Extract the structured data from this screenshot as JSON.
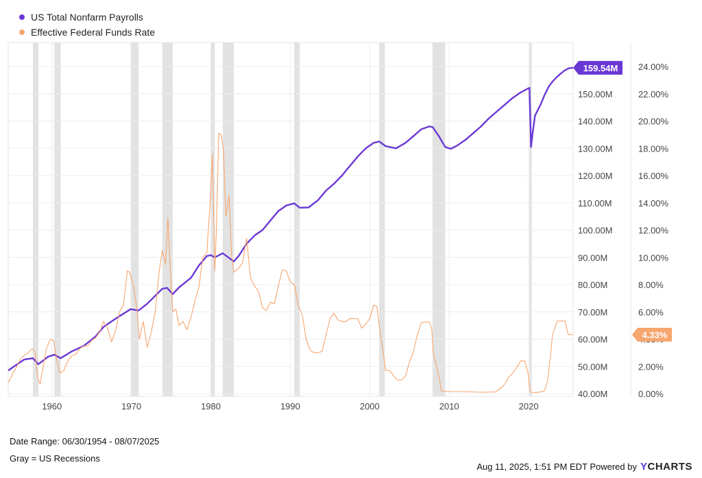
{
  "legend": [
    {
      "label": "US Total Nonfarm Payrolls",
      "color": "#6a38d6"
    },
    {
      "label": "Effective Federal Funds Rate",
      "color": "#f6a66e"
    }
  ],
  "footer": {
    "date_range": "Date Range: 06/30/1954 - 08/07/2025",
    "gray_note": "Gray = US Recessions",
    "timestamp": "Aug 11, 2025, 1:51 PM EDT Powered by",
    "brand_y": "Y",
    "brand_rest": "CHARTS"
  },
  "chart_data": {
    "type": "line",
    "x_ticks": [
      "1960",
      "1970",
      "1980",
      "1990",
      "2000",
      "2010",
      "2020"
    ],
    "x_range": [
      1954.5,
      2025.6
    ],
    "left_axis": {
      "range": [
        40,
        160
      ],
      "ticks": [
        "40.00M",
        "50.00M",
        "60.00M",
        "70.00M",
        "80.00M",
        "90.00M",
        "100.00M",
        "110.00M",
        "120.00M",
        "130.00M",
        "140.00M",
        "150.00M",
        "160.00M"
      ]
    },
    "right_axis": {
      "range": [
        0,
        24
      ],
      "ticks": [
        "0.00%",
        "2.00%",
        "4.00%",
        "6.00%",
        "8.00%",
        "10.00%",
        "12.00%",
        "14.00%",
        "16.00%",
        "18.00%",
        "20.00%",
        "22.00%",
        "24.00%"
      ]
    },
    "recessions": [
      [
        1957.6,
        1958.3
      ],
      [
        1960.3,
        1961.1
      ],
      [
        1969.9,
        1970.9
      ],
      [
        1973.9,
        1975.2
      ],
      [
        1980.0,
        1980.5
      ],
      [
        1981.5,
        1982.9
      ],
      [
        1990.5,
        1991.2
      ],
      [
        2001.2,
        2001.9
      ],
      [
        2007.9,
        2009.5
      ],
      [
        2020.1,
        2020.4
      ]
    ],
    "series": [
      {
        "name": "US Total Nonfarm Payrolls",
        "axis": "left",
        "color": "#6a38d6",
        "last_label": "159.54M",
        "points": [
          [
            1954.5,
            48.5
          ],
          [
            1955.5,
            50.5
          ],
          [
            1956.5,
            52.5
          ],
          [
            1957.6,
            53.0
          ],
          [
            1958.3,
            50.8
          ],
          [
            1959.5,
            53.5
          ],
          [
            1960.3,
            54.3
          ],
          [
            1961.1,
            53.0
          ],
          [
            1962.5,
            55.5
          ],
          [
            1964.0,
            57.5
          ],
          [
            1965.5,
            61.0
          ],
          [
            1966.5,
            64.5
          ],
          [
            1968.0,
            67.5
          ],
          [
            1969.9,
            71.0
          ],
          [
            1970.9,
            70.5
          ],
          [
            1972.0,
            73.0
          ],
          [
            1973.9,
            78.5
          ],
          [
            1974.5,
            78.8
          ],
          [
            1975.2,
            76.5
          ],
          [
            1976.0,
            79.0
          ],
          [
            1977.5,
            82.5
          ],
          [
            1978.5,
            87.0
          ],
          [
            1979.5,
            90.5
          ],
          [
            1980.0,
            90.8
          ],
          [
            1980.5,
            90.0
          ],
          [
            1981.5,
            91.5
          ],
          [
            1982.9,
            88.5
          ],
          [
            1983.5,
            90.5
          ],
          [
            1984.5,
            95.0
          ],
          [
            1985.5,
            98.0
          ],
          [
            1986.5,
            100.0
          ],
          [
            1987.5,
            103.5
          ],
          [
            1988.5,
            107.0
          ],
          [
            1989.5,
            109.0
          ],
          [
            1990.5,
            109.8
          ],
          [
            1991.2,
            108.2
          ],
          [
            1992.3,
            108.3
          ],
          [
            1993.5,
            111.0
          ],
          [
            1994.5,
            114.5
          ],
          [
            1995.5,
            117.0
          ],
          [
            1996.5,
            120.0
          ],
          [
            1997.5,
            123.5
          ],
          [
            1998.5,
            127.0
          ],
          [
            1999.5,
            130.0
          ],
          [
            2000.5,
            132.0
          ],
          [
            2001.2,
            132.5
          ],
          [
            2002.0,
            130.8
          ],
          [
            2003.3,
            130.0
          ],
          [
            2004.5,
            132.0
          ],
          [
            2005.5,
            134.5
          ],
          [
            2006.5,
            137.0
          ],
          [
            2007.5,
            138.0
          ],
          [
            2007.9,
            137.8
          ],
          [
            2008.7,
            134.5
          ],
          [
            2009.5,
            130.5
          ],
          [
            2010.2,
            129.8
          ],
          [
            2011.0,
            131.0
          ],
          [
            2012.0,
            133.0
          ],
          [
            2013.0,
            135.5
          ],
          [
            2014.0,
            138.0
          ],
          [
            2015.0,
            141.0
          ],
          [
            2016.0,
            143.5
          ],
          [
            2017.0,
            146.0
          ],
          [
            2018.0,
            148.5
          ],
          [
            2019.0,
            150.5
          ],
          [
            2020.1,
            152.2
          ],
          [
            2020.3,
            130.5
          ],
          [
            2020.5,
            135.5
          ],
          [
            2020.8,
            142.0
          ],
          [
            2021.5,
            146.0
          ],
          [
            2022.0,
            149.5
          ],
          [
            2022.5,
            152.5
          ],
          [
            2023.0,
            154.5
          ],
          [
            2023.5,
            156.0
          ],
          [
            2024.0,
            157.3
          ],
          [
            2024.5,
            158.5
          ],
          [
            2025.0,
            159.3
          ],
          [
            2025.6,
            159.54
          ]
        ]
      },
      {
        "name": "Effective Federal Funds Rate",
        "axis": "right",
        "color": "#f6a66e",
        "last_label": "4.33%",
        "points": [
          [
            1954.5,
            0.8
          ],
          [
            1955.0,
            1.4
          ],
          [
            1955.5,
            1.9
          ],
          [
            1956.0,
            2.5
          ],
          [
            1956.5,
            2.8
          ],
          [
            1957.0,
            3.0
          ],
          [
            1957.5,
            3.3
          ],
          [
            1957.9,
            3.0
          ],
          [
            1958.2,
            1.2
          ],
          [
            1958.5,
            0.7
          ],
          [
            1958.9,
            2.0
          ],
          [
            1959.3,
            3.3
          ],
          [
            1959.8,
            4.0
          ],
          [
            1960.2,
            3.9
          ],
          [
            1960.6,
            2.5
          ],
          [
            1961.0,
            1.5
          ],
          [
            1961.5,
            1.7
          ],
          [
            1962.0,
            2.4
          ],
          [
            1962.5,
            2.8
          ],
          [
            1963.0,
            2.9
          ],
          [
            1963.5,
            3.3
          ],
          [
            1964.0,
            3.5
          ],
          [
            1964.5,
            3.5
          ],
          [
            1965.0,
            3.9
          ],
          [
            1965.5,
            4.1
          ],
          [
            1966.0,
            4.5
          ],
          [
            1966.5,
            5.3
          ],
          [
            1967.0,
            4.8
          ],
          [
            1967.5,
            3.8
          ],
          [
            1968.0,
            4.6
          ],
          [
            1968.5,
            6.0
          ],
          [
            1969.0,
            6.5
          ],
          [
            1969.5,
            9.0
          ],
          [
            1969.8,
            8.9
          ],
          [
            1970.3,
            7.8
          ],
          [
            1970.7,
            6.2
          ],
          [
            1971.0,
            4.0
          ],
          [
            1971.5,
            5.3
          ],
          [
            1972.0,
            3.4
          ],
          [
            1972.5,
            4.5
          ],
          [
            1973.0,
            6.0
          ],
          [
            1973.5,
            9.0
          ],
          [
            1973.9,
            10.5
          ],
          [
            1974.3,
            9.5
          ],
          [
            1974.6,
            12.9
          ],
          [
            1974.9,
            9.2
          ],
          [
            1975.2,
            6.0
          ],
          [
            1975.6,
            6.2
          ],
          [
            1976.0,
            5.0
          ],
          [
            1976.5,
            5.3
          ],
          [
            1977.0,
            4.7
          ],
          [
            1977.5,
            5.6
          ],
          [
            1978.0,
            6.8
          ],
          [
            1978.5,
            7.8
          ],
          [
            1979.0,
            10.0
          ],
          [
            1979.5,
            10.3
          ],
          [
            1979.9,
            14.0
          ],
          [
            1980.2,
            17.6
          ],
          [
            1980.5,
            9.0
          ],
          [
            1980.7,
            12.0
          ],
          [
            1981.0,
            19.1
          ],
          [
            1981.3,
            19.0
          ],
          [
            1981.6,
            17.8
          ],
          [
            1981.9,
            13.0
          ],
          [
            1982.3,
            14.5
          ],
          [
            1982.6,
            10.2
          ],
          [
            1982.9,
            8.9
          ],
          [
            1983.5,
            9.2
          ],
          [
            1984.0,
            9.6
          ],
          [
            1984.5,
            11.4
          ],
          [
            1985.0,
            8.5
          ],
          [
            1985.5,
            7.9
          ],
          [
            1986.0,
            7.5
          ],
          [
            1986.5,
            6.3
          ],
          [
            1987.0,
            6.1
          ],
          [
            1987.5,
            6.7
          ],
          [
            1988.0,
            6.6
          ],
          [
            1988.5,
            7.9
          ],
          [
            1989.0,
            9.1
          ],
          [
            1989.5,
            9.0
          ],
          [
            1990.0,
            8.2
          ],
          [
            1990.5,
            8.0
          ],
          [
            1991.0,
            6.5
          ],
          [
            1991.5,
            5.8
          ],
          [
            1992.0,
            4.0
          ],
          [
            1992.5,
            3.2
          ],
          [
            1993.0,
            3.0
          ],
          [
            1993.5,
            3.0
          ],
          [
            1994.0,
            3.1
          ],
          [
            1994.5,
            4.3
          ],
          [
            1995.0,
            5.5
          ],
          [
            1995.5,
            5.9
          ],
          [
            1996.0,
            5.4
          ],
          [
            1996.5,
            5.3
          ],
          [
            1997.0,
            5.3
          ],
          [
            1997.5,
            5.5
          ],
          [
            1998.0,
            5.5
          ],
          [
            1998.5,
            5.5
          ],
          [
            1999.0,
            4.8
          ],
          [
            1999.5,
            5.1
          ],
          [
            2000.0,
            5.5
          ],
          [
            2000.5,
            6.5
          ],
          [
            2000.9,
            6.4
          ],
          [
            2001.3,
            4.5
          ],
          [
            2001.7,
            3.0
          ],
          [
            2002.0,
            1.7
          ],
          [
            2002.5,
            1.7
          ],
          [
            2003.0,
            1.3
          ],
          [
            2003.5,
            1.0
          ],
          [
            2004.0,
            1.0
          ],
          [
            2004.5,
            1.3
          ],
          [
            2005.0,
            2.3
          ],
          [
            2005.5,
            3.1
          ],
          [
            2006.0,
            4.3
          ],
          [
            2006.5,
            5.2
          ],
          [
            2007.0,
            5.25
          ],
          [
            2007.5,
            5.25
          ],
          [
            2007.8,
            4.8
          ],
          [
            2008.0,
            3.0
          ],
          [
            2008.4,
            2.0
          ],
          [
            2008.8,
            1.0
          ],
          [
            2009.0,
            0.2
          ],
          [
            2010.0,
            0.15
          ],
          [
            2012.0,
            0.15
          ],
          [
            2014.0,
            0.1
          ],
          [
            2015.8,
            0.12
          ],
          [
            2016.5,
            0.4
          ],
          [
            2017.0,
            0.7
          ],
          [
            2017.5,
            1.2
          ],
          [
            2018.0,
            1.5
          ],
          [
            2018.5,
            1.9
          ],
          [
            2019.0,
            2.4
          ],
          [
            2019.5,
            2.4
          ],
          [
            2019.9,
            1.6
          ],
          [
            2020.2,
            0.1
          ],
          [
            2021.0,
            0.08
          ],
          [
            2022.0,
            0.2
          ],
          [
            2022.4,
            1.0
          ],
          [
            2022.7,
            2.5
          ],
          [
            2023.0,
            4.3
          ],
          [
            2023.4,
            5.0
          ],
          [
            2023.6,
            5.33
          ],
          [
            2024.6,
            5.33
          ],
          [
            2024.8,
            4.8
          ],
          [
            2025.0,
            4.33
          ],
          [
            2025.6,
            4.33
          ]
        ]
      }
    ]
  }
}
